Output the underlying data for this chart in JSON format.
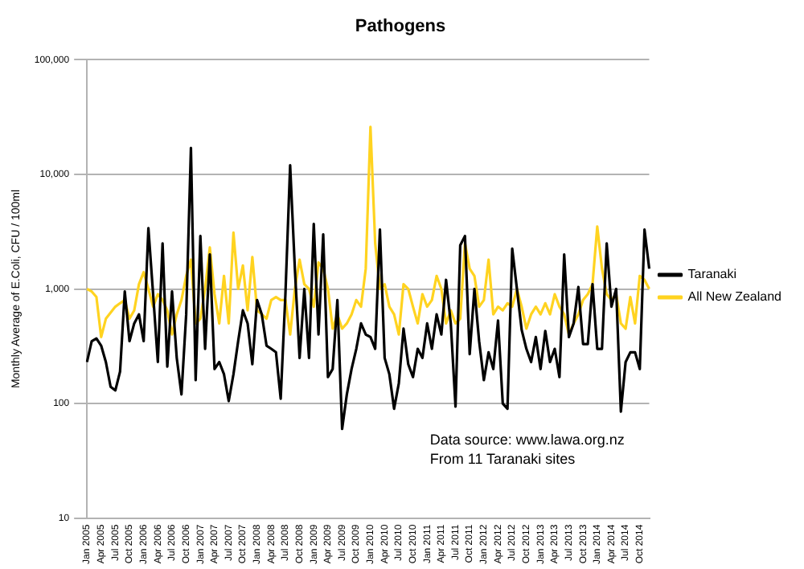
{
  "chart_data": {
    "type": "line",
    "title": "Pathogens",
    "ylabel": "Monthly Average of E.Coli, CFU / 100ml",
    "categories": [
      "Jan 2005",
      null,
      null,
      "Apr 2005",
      null,
      null,
      "Jul 2005",
      null,
      null,
      "Oct 2005",
      null,
      null,
      "Jan 2006",
      null,
      null,
      "Apr 2006",
      null,
      null,
      "Jul 2006",
      null,
      null,
      "Oct 2006",
      null,
      null,
      "Jan 2007",
      null,
      null,
      "Apr 2007",
      null,
      null,
      "Jul 2007",
      null,
      null,
      "Oct 2007",
      null,
      null,
      "Jan 2008",
      null,
      null,
      "Apr 2008",
      null,
      null,
      "Jul 2008",
      null,
      null,
      "Oct 2008",
      null,
      null,
      "Jan 2009",
      null,
      null,
      "Apr 2009",
      null,
      null,
      "Jul 2009",
      null,
      null,
      "Oct 2009",
      null,
      null,
      "Jan 2010",
      null,
      null,
      "Apr 2010",
      null,
      null,
      "Jul 2010",
      null,
      null,
      "Oct 2010",
      null,
      null,
      "Jan 2011",
      null,
      null,
      "Apr 2011",
      null,
      null,
      "Jul 2011",
      null,
      null,
      "Oct 2011",
      null,
      null,
      "Jan 2012",
      null,
      null,
      "Apr 2012",
      null,
      null,
      "Jul 2012",
      null,
      null,
      "Oct 2012",
      null,
      null,
      "Jan 2013",
      null,
      null,
      "Apr 2013",
      null,
      null,
      "Jul 2013",
      null,
      null,
      "Oct 2013",
      null,
      null,
      "Jan 2014",
      null,
      null,
      "Apr 2014",
      null,
      null,
      "Jul 2014",
      null,
      null,
      "Oct 2014",
      null,
      null
    ],
    "series": [
      {
        "name": "Taranaki",
        "color": "#000000",
        "values": [
          230,
          350,
          370,
          320,
          230,
          140,
          130,
          190,
          950,
          350,
          500,
          600,
          350,
          3400,
          900,
          230,
          2500,
          210,
          950,
          250,
          120,
          600,
          17000,
          160,
          2900,
          300,
          2000,
          200,
          230,
          180,
          105,
          180,
          350,
          650,
          500,
          220,
          800,
          600,
          320,
          300,
          280,
          110,
          900,
          12000,
          1500,
          250,
          1000,
          250,
          3700,
          400,
          3000,
          170,
          200,
          800,
          60,
          120,
          200,
          300,
          500,
          400,
          380,
          300,
          3300,
          250,
          180,
          90,
          150,
          450,
          220,
          170,
          300,
          250,
          500,
          300,
          600,
          400,
          1200,
          500,
          94,
          2400,
          2900,
          270,
          1000,
          350,
          160,
          280,
          200,
          530,
          100,
          90,
          2250,
          1000,
          440,
          300,
          230,
          380,
          200,
          430,
          230,
          300,
          170,
          2000,
          380,
          500,
          1040,
          330,
          330,
          1100,
          300,
          300,
          2500,
          700,
          1000,
          85,
          230,
          280,
          280,
          200,
          3300,
          1500
        ]
      },
      {
        "name": "All New Zealand",
        "color": "#ffd320",
        "values": [
          1000,
          950,
          850,
          380,
          550,
          620,
          700,
          750,
          800,
          550,
          650,
          1100,
          1400,
          1000,
          700,
          900,
          800,
          650,
          400,
          600,
          800,
          1300,
          1800,
          500,
          550,
          1000,
          2300,
          900,
          500,
          1300,
          500,
          3100,
          1000,
          1600,
          650,
          1900,
          650,
          600,
          550,
          800,
          850,
          800,
          800,
          400,
          1000,
          1800,
          1100,
          1000,
          700,
          1700,
          1500,
          1000,
          450,
          600,
          450,
          500,
          600,
          800,
          700,
          1500,
          26000,
          2500,
          1000,
          1100,
          700,
          600,
          400,
          1100,
          1000,
          700,
          500,
          900,
          700,
          800,
          1300,
          1000,
          500,
          650,
          500,
          550,
          2500,
          1500,
          1300,
          700,
          800,
          1800,
          600,
          700,
          650,
          750,
          700,
          1000,
          700,
          450,
          600,
          700,
          600,
          750,
          600,
          900,
          700,
          600,
          400,
          500,
          600,
          800,
          900,
          1100,
          3500,
          1500,
          900,
          800,
          900,
          500,
          450,
          850,
          500,
          1300,
          1200,
          1000
        ]
      }
    ],
    "log": "y",
    "ylim": [
      10,
      100000
    ],
    "yticks": [
      10,
      100,
      {
        "value": 1000,
        "label": "1,000"
      },
      {
        "value": 10000,
        "label": "10,000"
      },
      {
        "value": 100000,
        "label": "100,000"
      }
    ],
    "grid": "y",
    "legend": "right",
    "marker": "none",
    "line_style": "solid",
    "annotations": [
      "Data source: www.lawa.org.nz",
      "From 11 Taranaki sites"
    ]
  }
}
